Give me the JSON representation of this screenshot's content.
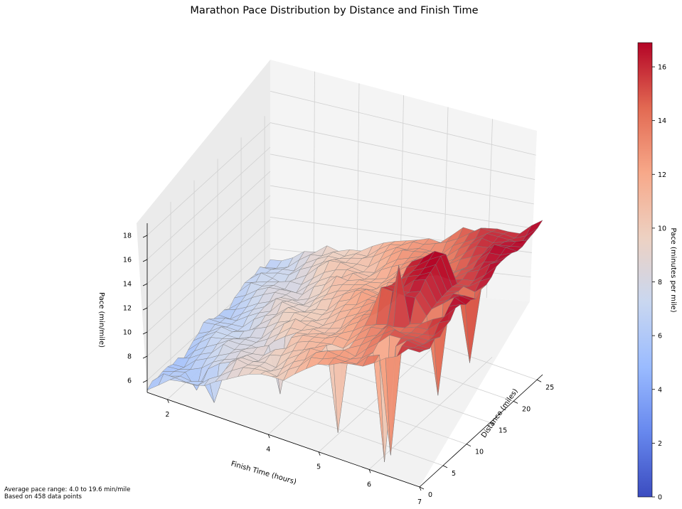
{
  "chart_data": {
    "type": "surface3d",
    "title": "Marathon Pace Distribution by Distance and Finish Time",
    "xlabel": "Finish Time (hours)",
    "ylabel": "Distance (miles)",
    "zlabel": "Pace (min/mile)",
    "x_ticks": [
      "2",
      "4",
      "5",
      "6",
      "7"
    ],
    "y_ticks": [
      "0",
      "5",
      "10",
      "15",
      "20",
      "25"
    ],
    "z_ticks": [
      "6",
      "8",
      "10",
      "12",
      "14",
      "16",
      "18"
    ],
    "colormap": "coolwarm",
    "colorbar": {
      "label": "Pace (minutes per mile)",
      "ticks": [
        "0",
        "2",
        "4",
        "6",
        "8",
        "10",
        "12",
        "14",
        "16"
      ],
      "range": [
        0,
        16.9
      ],
      "colors": [
        "#3b4cc0",
        "#6788ee",
        "#9abbff",
        "#c9d7f0",
        "#edd1c2",
        "#f7a889",
        "#e26952",
        "#b40426"
      ]
    },
    "grid": true,
    "surface": {
      "x_range": [
        1.6,
        7.0
      ],
      "y_range": [
        0,
        26.2
      ],
      "approx_base_pace_by_finish_time": [
        {
          "finish_time": 2,
          "pace": 6
        },
        {
          "finish_time": 3,
          "pace": 8
        },
        {
          "finish_time": 4,
          "pace": 10
        },
        {
          "finish_time": 5,
          "pace": 12
        },
        {
          "finish_time": 6,
          "pace": 14
        },
        {
          "finish_time": 7,
          "pace": 16
        }
      ]
    }
  },
  "footnote": {
    "line1": "Average pace range: 4.0 to 19.6 min/mile",
    "line2": "Based on 458 data points"
  }
}
